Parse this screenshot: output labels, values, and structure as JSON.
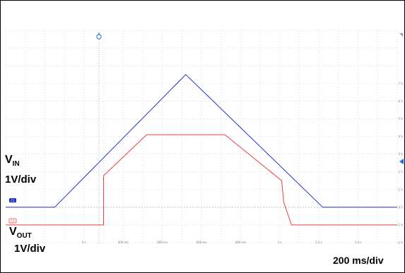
{
  "chart_data": {
    "type": "line",
    "x_unit": "ms",
    "xlim": [
      -400,
      1600
    ],
    "ylim": [
      -2,
      10
    ],
    "x_ticks": [
      "0 s",
      "200 ms",
      "400 ms",
      "600 ms",
      "800 ms",
      "1 s",
      "1.2 s",
      "1.4 s"
    ],
    "y_ticks": [
      "7 V",
      "6 V",
      "5 V",
      "4 V",
      "3 V",
      "2 V",
      "1 V",
      "0 V",
      "-1 V",
      "-2 V"
    ],
    "series": [
      {
        "name": "VIN",
        "color": "#1f2fd6",
        "x": [
          -400,
          -150,
          520,
          1220,
          1600
        ],
        "y": [
          0,
          0,
          7.5,
          0,
          0
        ]
      },
      {
        "name": "VOUT",
        "color": "#e8413a",
        "x": [
          -400,
          100,
          100,
          101,
          130,
          320,
          720,
          1010,
          1020,
          1060,
          1600
        ],
        "y": [
          -1,
          -1,
          1.7,
          1.8,
          2.1,
          4.1,
          4.1,
          1.5,
          0.3,
          -1,
          -1
        ]
      }
    ],
    "channel_markers": {
      "ch1": "C1",
      "ch2": "C2"
    },
    "annotations": {
      "vin_name": "V",
      "vin_sub": "IN",
      "vin_scale": "1V/div",
      "vout_name": "V",
      "vout_sub": "OUT",
      "vout_scale": "1V/div",
      "timebase": "200 ms/div"
    },
    "grid": true
  }
}
